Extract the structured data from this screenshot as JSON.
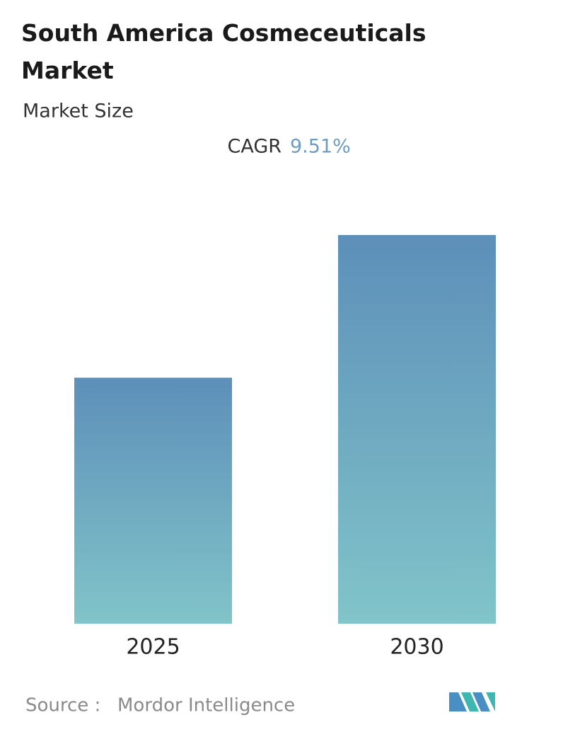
{
  "chart_data": {
    "type": "bar",
    "title": "South America Cosmeceuticals Market",
    "subtitle": "Market Size",
    "cagr_label": "CAGR",
    "cagr_value": "9.51%",
    "categories": [
      "2025",
      "2030"
    ],
    "values": [
      1,
      1.58
    ],
    "colors": [
      "#5d8fb9",
      "#81c4c9"
    ],
    "source_label": "Source :",
    "source": "Mordor Intelligence"
  }
}
